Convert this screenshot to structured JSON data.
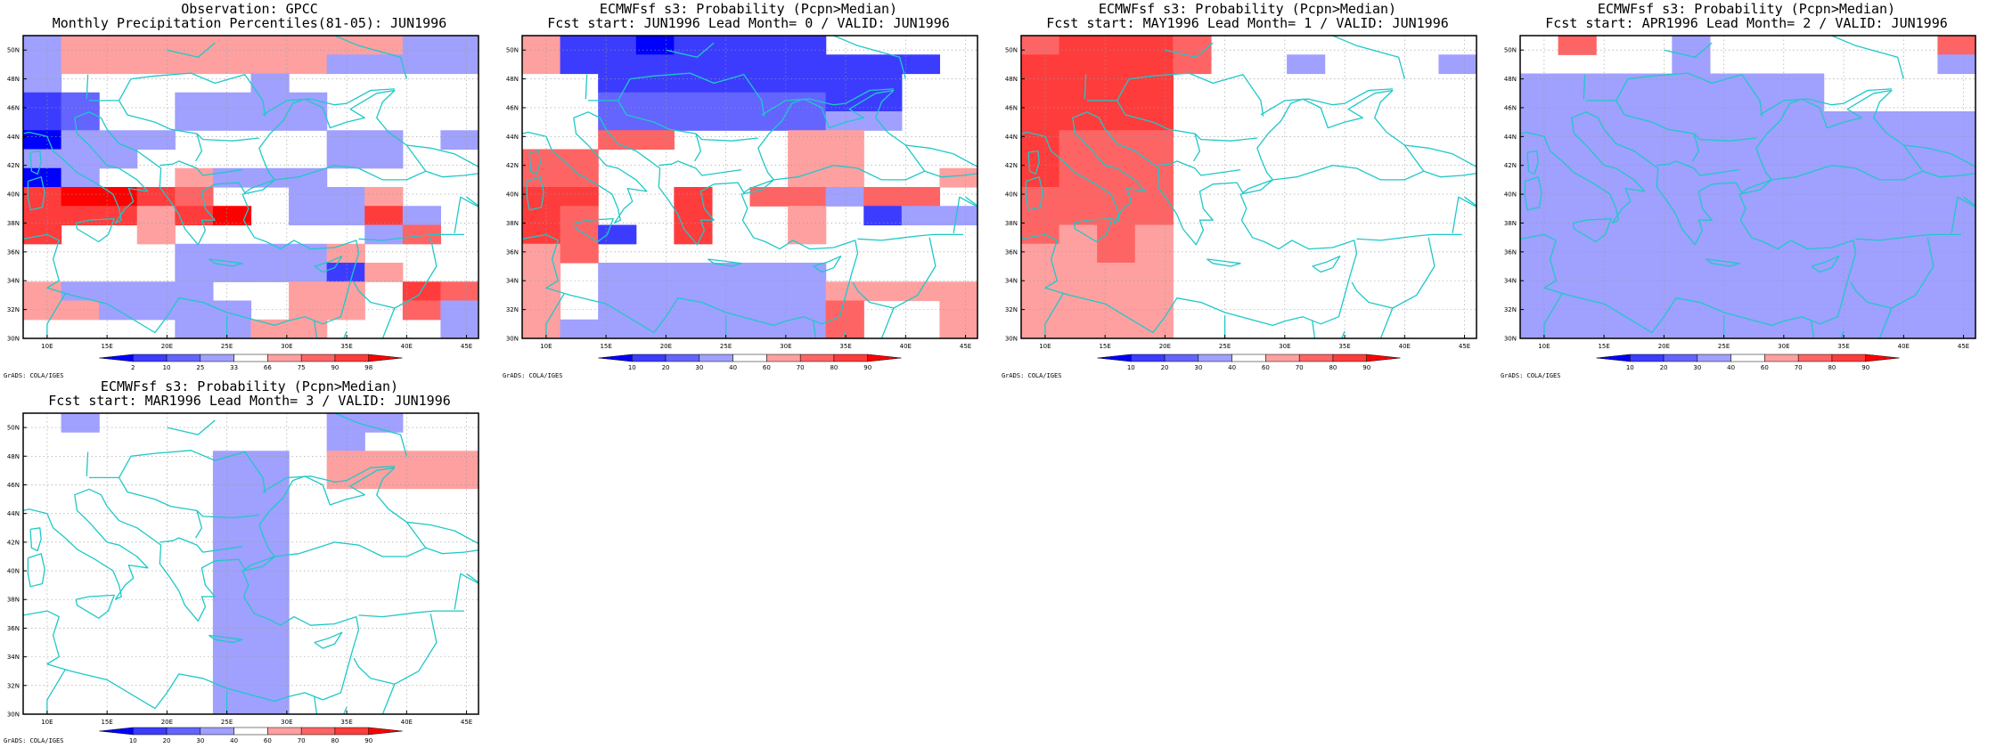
{
  "credit": "GrADS: COLA/IGES",
  "axes": {
    "lat_labels": [
      "30N",
      "32N",
      "34N",
      "36N",
      "38N",
      "40N",
      "42N",
      "44N",
      "46N",
      "48N",
      "50N"
    ],
    "lon_labels": [
      "10E",
      "15E",
      "20E",
      "25E",
      "30E",
      "35E",
      "40E",
      "45E"
    ]
  },
  "panels": [
    {
      "title_line1": "Observation: GPCC",
      "title_line2": "Monthly Precipitation Percentiles(81-05): JUN1996",
      "colorbar_labels": [
        "2",
        "10",
        "25",
        "33",
        "66",
        "75",
        "90",
        "98"
      ],
      "colors": [
        "#0000ff",
        "#3c3cff",
        "#6464ff",
        "#a0a0ff",
        "#ffffff",
        "#ffa0a0",
        "#ff6464",
        "#ff3c3c",
        "#ff0000"
      ],
      "grid": [
        "355555555533",
        "355555553333",
        "344444344444",
        "124433334444",
        "124433334444",
        "033344443343",
        "333444443344",
        "034453334444",
        "788764433544",
        "777578433734",
        "744544444364",
        "444433335444",
        "444433331544",
        "533334455476",
        "553333455463",
        "444433554443"
      ]
    },
    {
      "title_line1": "ECMWFsf s3: Probability (Pcpn>Median)",
      "title_line2": "Fcst start: JUN1996  Lead Month= 0 / VALID: JUN1996",
      "colorbar_labels": [
        "10",
        "20",
        "30",
        "40",
        "60",
        "70",
        "80",
        "90"
      ],
      "colors": [
        "#0000ff",
        "#3c3cff",
        "#6464ff",
        "#a0a0ff",
        "#ffffff",
        "#ffa0a0",
        "#ff6464",
        "#ff3c3c",
        "#ff0000"
      ],
      "grid": [
        "511011114444",
        "511111111114",
        "441111111144",
        "442222221144",
        "442222223344",
        "446644455444",
        "664444455444",
        "664444455445",
        "774474663664",
        "764474454133",
        "761474454444",
        "564444444444",
        "543333334444",
        "543333335555",
        "543333336445",
        "533333336445"
      ]
    },
    {
      "title_line1": "ECMWFsf s3: Probability (Pcpn>Median)",
      "title_line2": "Fcst start: MAY1996  Lead Month= 1 / VALID: JUN1996",
      "colorbar_labels": [
        "10",
        "20",
        "30",
        "40",
        "60",
        "70",
        "80",
        "90"
      ],
      "colors": [
        "#0000ff",
        "#3c3cff",
        "#6464ff",
        "#a0a0ff",
        "#ffffff",
        "#ffa0a0",
        "#ff6464",
        "#ff3c3c",
        "#ff0000"
      ],
      "grid": [
        "677764444444",
        "777764434443",
        "777744444444",
        "777744444444",
        "777744444444",
        "766644444444",
        "766644444444",
        "766644444444",
        "666644444444",
        "666644444444",
        "656544444444",
        "556544444444",
        "555544444444",
        "555544444444",
        "555544444444",
        "555544444444"
      ]
    },
    {
      "title_line1": "ECMWFsf s3: Probability (Pcpn>Median)",
      "title_line2": "Fcst start: APR1996  Lead Month= 2 / VALID: JUN1996",
      "colorbar_labels": [
        "10",
        "20",
        "30",
        "40",
        "60",
        "70",
        "80",
        "90"
      ],
      "colors": [
        "#0000ff",
        "#3c3cff",
        "#6464ff",
        "#a0a0ff",
        "#ffffff",
        "#ffa0a0",
        "#ff6464",
        "#ff3c3c",
        "#ff0000"
      ],
      "grid": [
        "464434444446",
        "444434444443",
        "333333334444",
        "333333334444",
        "333333333333",
        "333333333333",
        "333333333333",
        "333333333333",
        "333333333333",
        "333333333333",
        "333333333333",
        "333333333333",
        "333333333333",
        "333333333333",
        "333333333333",
        "333333333333"
      ]
    },
    {
      "title_line1": "ECMWFsf s3: Probability (Pcpn>Median)",
      "title_line2": "Fcst start: MAR1996  Lead Month= 3 / VALID: JUN1996",
      "colorbar_labels": [
        "10",
        "20",
        "30",
        "40",
        "60",
        "70",
        "80",
        "90"
      ],
      "colors": [
        "#0000ff",
        "#3c3cff",
        "#6464ff",
        "#a0a0ff",
        "#ffffff",
        "#ffa0a0",
        "#ff6464",
        "#ff3c3c",
        "#ff0000"
      ],
      "grid": [
        "434444443344",
        "444444443444",
        "444443345555",
        "444443345555",
        "444443344444",
        "444443344444",
        "444443344444",
        "444443344444",
        "444443344444",
        "444443344444",
        "444443344444",
        "444443344444",
        "444443344444",
        "444443344444",
        "444443344444",
        "444443344444"
      ]
    }
  ]
}
